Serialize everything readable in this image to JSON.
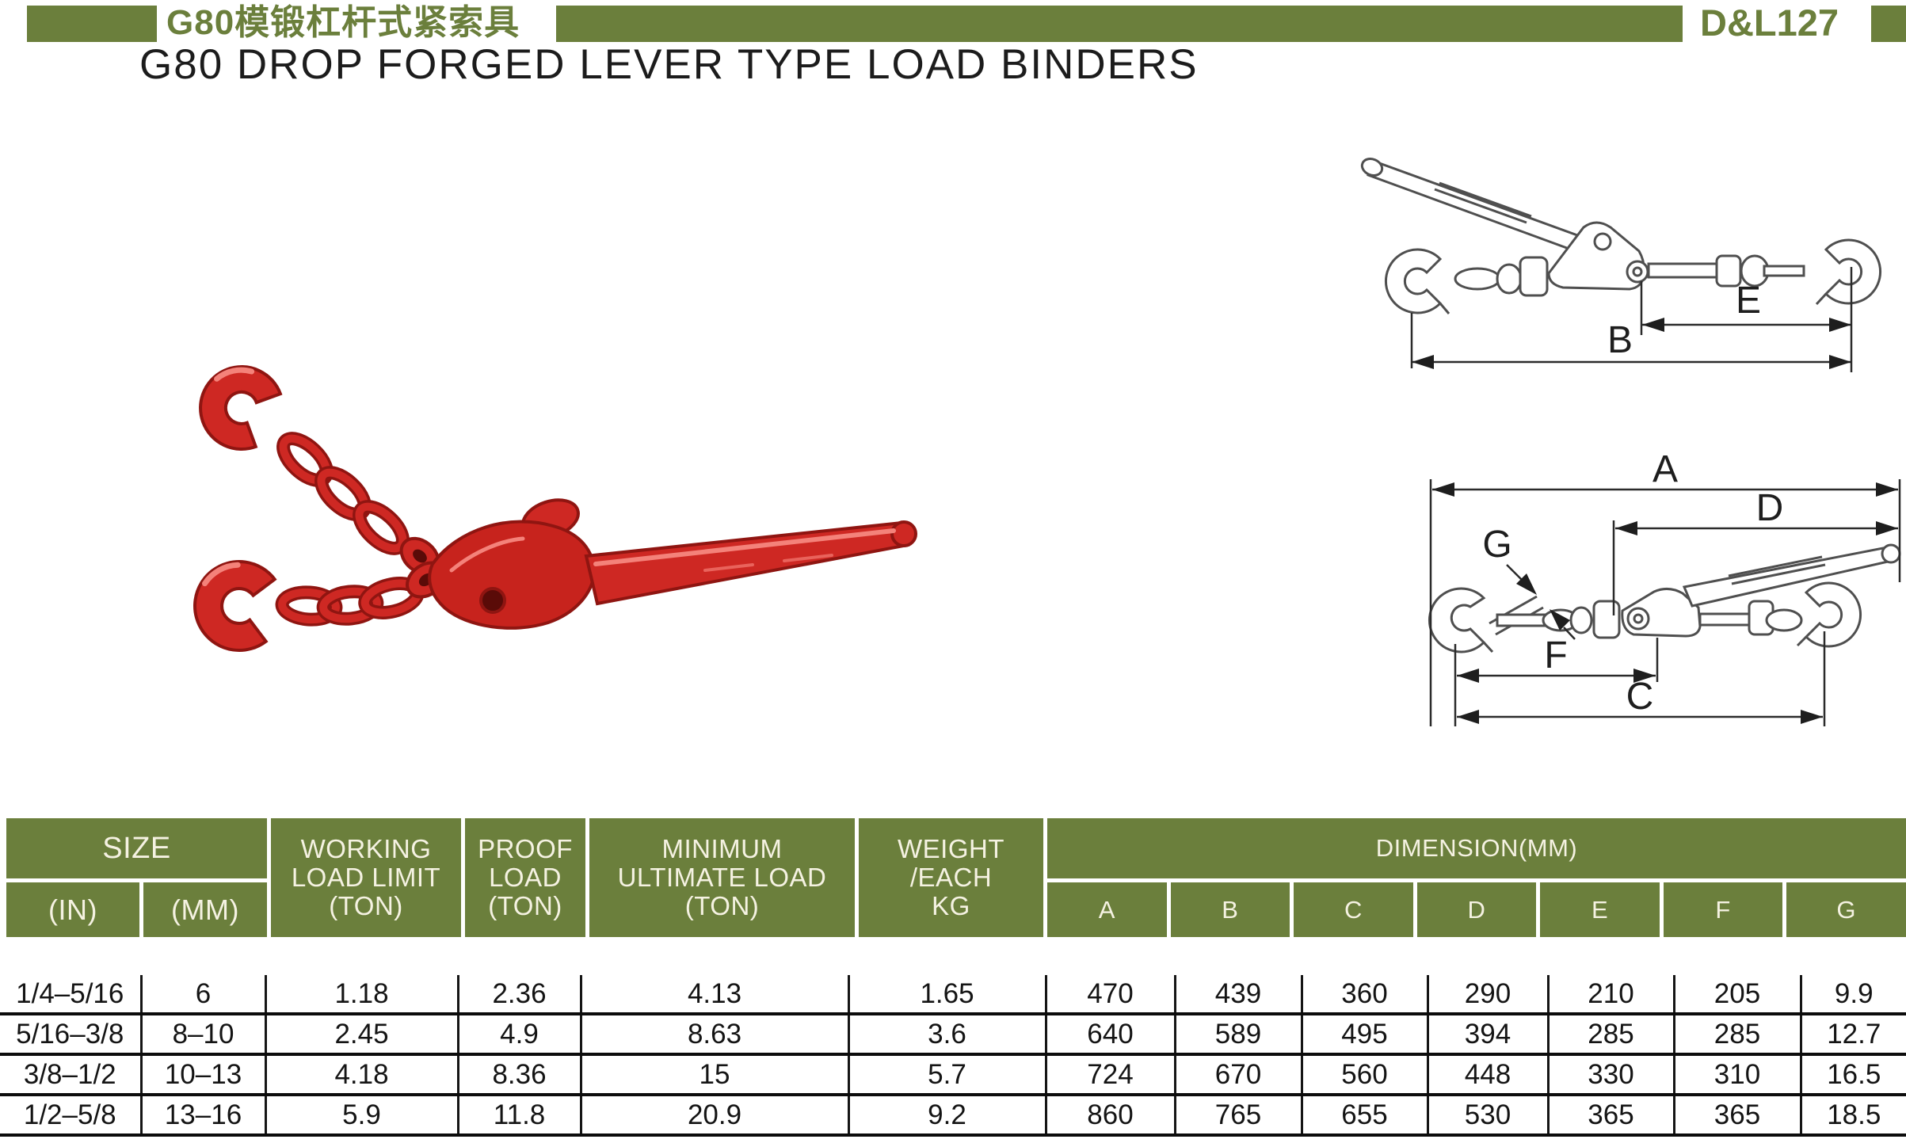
{
  "page": {
    "title_cn": "G80模锻杠杆式紧索具",
    "subtitle_en": "G80 DROP FORGED LEVER TYPE LOAD BINDERS",
    "code": "D&L127"
  },
  "colors": {
    "green": "#6B7F3C",
    "cream": "#F5F2E2",
    "product_red": "#CE2823",
    "line_gray": "#4F4F4F"
  },
  "diagram_labels": {
    "a": "A",
    "b": "B",
    "c": "C",
    "d": "D",
    "e": "E",
    "f": "F",
    "g": "G"
  },
  "table": {
    "header": {
      "size": "SIZE",
      "size_in": "(IN)",
      "size_mm": "(MM)",
      "wll": [
        "WORKING",
        "LOAD LIMIT",
        "(TON)"
      ],
      "proof": [
        "PROOF",
        "LOAD",
        "(TON)"
      ],
      "mul": [
        "MINIMUM",
        "ULTIMATE LOAD",
        "(TON)"
      ],
      "weight": [
        "WEIGHT",
        "/EACH",
        "KG"
      ],
      "dimension": "DIMENSION(MM)",
      "dims": [
        "A",
        "B",
        "C",
        "D",
        "E",
        "F",
        "G"
      ]
    },
    "rows": [
      {
        "in": "1/4–5/16",
        "mm": "6",
        "wll": "1.18",
        "proof": "2.36",
        "mul": "4.13",
        "weight": "1.65",
        "a": "470",
        "b": "439",
        "c": "360",
        "d": "290",
        "e": "210",
        "f": "205",
        "g": "9.9"
      },
      {
        "in": "5/16–3/8",
        "mm": "8–10",
        "wll": "2.45",
        "proof": "4.9",
        "mul": "8.63",
        "weight": "3.6",
        "a": "640",
        "b": "589",
        "c": "495",
        "d": "394",
        "e": "285",
        "f": "285",
        "g": "12.7"
      },
      {
        "in": "3/8–1/2",
        "mm": "10–13",
        "wll": "4.18",
        "proof": "8.36",
        "mul": "15",
        "weight": "5.7",
        "a": "724",
        "b": "670",
        "c": "560",
        "d": "448",
        "e": "330",
        "f": "310",
        "g": "16.5"
      },
      {
        "in": "1/2–5/8",
        "mm": "13–16",
        "wll": "5.9",
        "proof": "11.8",
        "mul": "20.9",
        "weight": "9.2",
        "a": "860",
        "b": "765",
        "c": "655",
        "d": "530",
        "e": "365",
        "f": "365",
        "g": "18.5"
      }
    ]
  }
}
